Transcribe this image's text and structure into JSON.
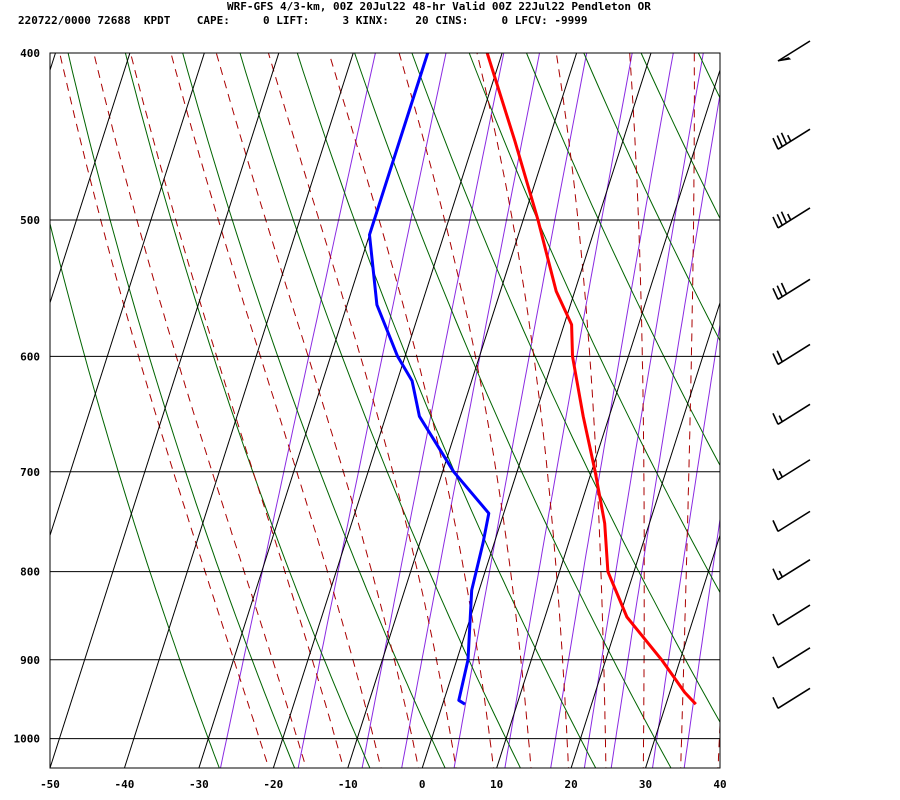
{
  "header": {
    "title": "WRF-GFS 4/3-km, 00Z 20Jul22 48-hr Valid 00Z 22Jul22 Pendleton OR",
    "stats": "220722/0000 72688  KPDT    CAPE:     0 LIFT:     3 KINX:    20 CINS:     0 LFCV: -9999"
  },
  "chart_data": {
    "type": "line",
    "diagram": "skew-T log-p",
    "title": "WRF-GFS 4/3-km, 00Z 20Jul22 48-hr Valid 00Z 22Jul22 Pendleton OR",
    "xlabel": "",
    "ylabel": "",
    "xlim": [
      -50,
      40
    ],
    "ylim": [
      1040,
      400
    ],
    "y_scale": "log",
    "x_ticks": [
      -50,
      -40,
      -30,
      -20,
      -10,
      0,
      10,
      20,
      30,
      40
    ],
    "y_ticks": [
      400,
      500,
      600,
      700,
      800,
      900,
      1000
    ],
    "grid": true,
    "series": [
      {
        "color": "#ff0000",
        "p": [
          400,
          450,
          500,
          550,
          575,
          600,
          650,
          700,
          750,
          800,
          850,
          900,
          940,
          955
        ],
        "t": [
          -22,
          -14.5,
          -8,
          -2.5,
          1,
          2.5,
          6.5,
          10.5,
          14,
          16.5,
          21,
          27.5,
          32,
          34
        ]
      },
      {
        "color": "#0000ff",
        "p": [
          400,
          410,
          480,
          510,
          560,
          600,
          620,
          650,
          700,
          740,
          770,
          820,
          900,
          950,
          955
        ],
        "t": [
          -30,
          -30,
          -30,
          -30,
          -26,
          -21,
          -18,
          -15.5,
          -8.5,
          -2,
          -1.5,
          -1,
          1.5,
          2,
          3
        ]
      }
    ],
    "wind_barbs": [
      {
        "p": 400,
        "flag": true,
        "barbs": 0
      },
      {
        "p": 450,
        "flag": false,
        "barbs": 3.5
      },
      {
        "p": 500,
        "flag": false,
        "barbs": 3.5
      },
      {
        "p": 550,
        "flag": false,
        "barbs": 3
      },
      {
        "p": 600,
        "flag": false,
        "barbs": 2
      },
      {
        "p": 650,
        "flag": false,
        "barbs": 1.5
      },
      {
        "p": 700,
        "flag": false,
        "barbs": 1.5
      },
      {
        "p": 750,
        "flag": false,
        "barbs": 1
      },
      {
        "p": 800,
        "flag": false,
        "barbs": 1.5
      },
      {
        "p": 850,
        "flag": false,
        "barbs": 1
      },
      {
        "p": 900,
        "flag": false,
        "barbs": 1
      },
      {
        "p": 950,
        "flag": false,
        "barbs": 1
      }
    ],
    "colors": {
      "isotherm": "#000000",
      "dry_adiabat": "#006400",
      "moist_adiabat": "#aa0000",
      "mixing_ratio": "#8b2be2",
      "temperature": "#ff0000",
      "dewpoint": "#0000ff"
    }
  }
}
